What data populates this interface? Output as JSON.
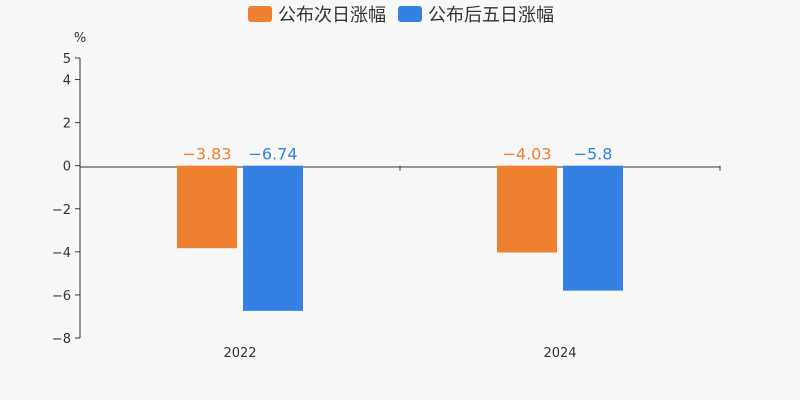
{
  "legend": {
    "items": [
      {
        "label": "公布次日涨幅",
        "color": "#ef8030"
      },
      {
        "label": "公布后五日涨幅",
        "color": "#3580e3"
      }
    ]
  },
  "chart_data": {
    "type": "bar",
    "unit": "%",
    "categories": [
      "2022",
      "2024"
    ],
    "series": [
      {
        "name": "公布次日涨幅",
        "color": "#ef8030",
        "values": [
          -3.83,
          -4.03
        ],
        "labels": [
          "−3.83",
          "−4.03"
        ]
      },
      {
        "name": "公布后五日涨幅",
        "color": "#3580e3",
        "values": [
          -6.74,
          -5.8
        ],
        "labels": [
          "−6.74",
          "−5.8"
        ]
      }
    ],
    "ylim": [
      -8,
      5
    ],
    "yticks": [
      5,
      4,
      2,
      0,
      -2,
      -4,
      -6,
      -8
    ],
    "ytick_labels": [
      "5",
      "4",
      "2",
      "0",
      "−2",
      "−4",
      "−6",
      "−8"
    ],
    "grid": false,
    "legend_position": "top-center"
  }
}
